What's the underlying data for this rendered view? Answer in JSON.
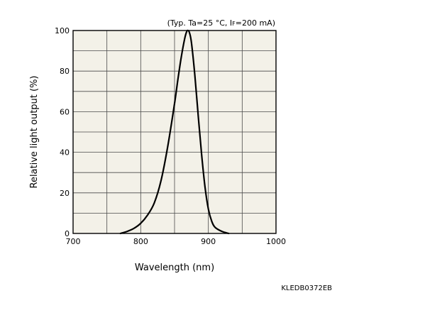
{
  "chart_data": {
    "type": "line",
    "condition_prefix": "(Typ. Ta=25 °C, I",
    "condition_sub": "F",
    "condition_suffix": "=200 mA)",
    "xlabel": "Wavelength (nm)",
    "ylabel": "Relative light output (%)",
    "xlim": [
      700,
      1000
    ],
    "ylim": [
      0,
      100
    ],
    "x_ticks": [
      700,
      800,
      900,
      1000
    ],
    "y_ticks": [
      0,
      20,
      40,
      60,
      80,
      100
    ],
    "grid": true,
    "background_color": "#f3f1e8",
    "line_color": "#000000",
    "series": [
      {
        "x": [
          770,
          780,
          790,
          800,
          810,
          820,
          830,
          840,
          850,
          855,
          860,
          865,
          868,
          870,
          872,
          875,
          880,
          885,
          890,
          895,
          900,
          905,
          910,
          920,
          930
        ],
        "y": [
          0,
          1,
          2.5,
          5,
          9,
          15,
          26,
          43,
          64,
          76,
          87,
          96,
          99.5,
          100,
          99,
          94,
          78,
          58,
          39,
          23,
          12,
          6,
          3,
          1,
          0
        ]
      }
    ],
    "figure_code": "KLEDB0372EB"
  }
}
